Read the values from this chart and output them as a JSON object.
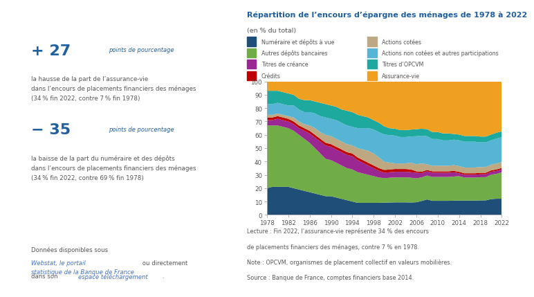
{
  "title": "Répartition de l’encours d’épargne des ménages de 1978 à 2022",
  "subtitle": "(en % du total)",
  "title_color": "#2060a0",
  "text_color": "#555555",
  "link_color": "#4472c4",
  "years": [
    1978,
    1979,
    1980,
    1981,
    1982,
    1983,
    1984,
    1985,
    1986,
    1987,
    1988,
    1989,
    1990,
    1991,
    1992,
    1993,
    1994,
    1995,
    1996,
    1997,
    1998,
    1999,
    2000,
    2001,
    2002,
    2003,
    2004,
    2005,
    2006,
    2007,
    2008,
    2009,
    2010,
    2011,
    2012,
    2013,
    2014,
    2015,
    2016,
    2017,
    2018,
    2019,
    2020,
    2021,
    2022
  ],
  "series": {
    "Numéraire et dépôts à vue": {
      "color": "#1f4e79",
      "values": [
        20,
        21,
        21,
        21,
        21,
        20,
        19,
        18,
        17,
        16,
        15,
        14,
        14,
        13,
        12,
        11,
        10,
        9,
        9,
        9,
        9,
        9,
        9,
        9,
        9,
        9,
        9,
        9,
        9,
        10,
        11,
        10,
        10,
        10,
        10,
        10,
        10,
        10,
        10,
        10,
        10,
        10,
        11,
        11,
        11
      ]
    },
    "Autres dépôts bancaires": {
      "color": "#70ad47",
      "values": [
        47,
        46,
        46,
        45,
        44,
        43,
        41,
        39,
        37,
        34,
        31,
        28,
        27,
        26,
        25,
        24,
        24,
        23,
        22,
        21,
        20,
        19,
        18,
        18,
        18,
        18,
        18,
        18,
        17,
        17,
        17,
        17,
        17,
        17,
        17,
        17,
        17,
        16,
        16,
        16,
        16,
        16,
        17,
        17,
        18
      ]
    },
    "Titres de créance": {
      "color": "#9b2793",
      "values": [
        4,
        4,
        5,
        5,
        5,
        5,
        5,
        6,
        7,
        8,
        9,
        10,
        10,
        10,
        10,
        10,
        10,
        9,
        8,
        7,
        6,
        5,
        4,
        4,
        4,
        4,
        4,
        4,
        4,
        3,
        3,
        3,
        3,
        3,
        3,
        3,
        2,
        2,
        2,
        2,
        2,
        2,
        2,
        2,
        2
      ]
    },
    "Crédits": {
      "color": "#c00000",
      "values": [
        2,
        2,
        2,
        2,
        2,
        2,
        2,
        2,
        2,
        2,
        2,
        2,
        2,
        2,
        2,
        2,
        2,
        2,
        2,
        2,
        2,
        2,
        2,
        2,
        2,
        2,
        2,
        2,
        1,
        1,
        1,
        1,
        1,
        1,
        1,
        1,
        1,
        1,
        1,
        1,
        1,
        1,
        1,
        1,
        1
      ]
    },
    "Actions cotées": {
      "color": "#bda882",
      "values": [
        2,
        2,
        2,
        2,
        2,
        3,
        3,
        3,
        4,
        5,
        5,
        6,
        6,
        6,
        6,
        6,
        6,
        7,
        8,
        9,
        9,
        8,
        6,
        5,
        4,
        4,
        4,
        5,
        5,
        6,
        4,
        4,
        4,
        4,
        4,
        4,
        4,
        4,
        4,
        4,
        4,
        4,
        4,
        4,
        4
      ]
    },
    "Actions non cotées et autres participations": {
      "color": "#56b4d4",
      "values": [
        8,
        8,
        8,
        8,
        8,
        9,
        9,
        9,
        10,
        11,
        12,
        13,
        13,
        14,
        14,
        14,
        14,
        15,
        16,
        17,
        18,
        19,
        20,
        20,
        20,
        19,
        19,
        19,
        20,
        20,
        20,
        19,
        19,
        18,
        18,
        18,
        18,
        18,
        18,
        18,
        17,
        17,
        17,
        17,
        17
      ]
    },
    "Titres d’OPCVM": {
      "color": "#1da99e",
      "values": [
        10,
        10,
        9,
        9,
        9,
        8,
        8,
        9,
        9,
        9,
        10,
        10,
        10,
        10,
        10,
        11,
        11,
        10,
        9,
        8,
        7,
        7,
        6,
        5,
        5,
        5,
        5,
        5,
        5,
        5,
        5,
        5,
        5,
        5,
        5,
        4,
        4,
        4,
        4,
        4,
        4,
        4,
        4,
        4,
        4
      ]
    },
    "Assurance-vie": {
      "color": "#f0a020",
      "values": [
        7,
        7,
        7,
        8,
        9,
        10,
        13,
        14,
        14,
        15,
        16,
        17,
        18,
        19,
        21,
        22,
        23,
        25,
        26,
        27,
        29,
        31,
        33,
        34,
        34,
        35,
        35,
        35,
        34,
        34,
        34,
        36,
        36,
        37,
        37,
        37,
        37,
        38,
        38,
        38,
        38,
        38,
        37,
        35,
        34
      ]
    }
  },
  "stack_order": [
    "Numéraire et dépôts à vue",
    "Autres dépôts bancaires",
    "Titres de créance",
    "Crédits",
    "Actions cotées",
    "Actions non cotées et autres participations",
    "Titres d’OPCVM",
    "Assurance-vie"
  ],
  "legend_col1_keys": [
    "Numéraire et dépôts à vue",
    "Autres dépôts bancaires",
    "Titres de créance",
    "Crédits"
  ],
  "legend_col1_labels": [
    "Numéraire et dépôts à vue",
    "Autres dépôts bancaires",
    "Titres de créance",
    "Crédits"
  ],
  "legend_col2_keys": [
    "Actions cotées",
    "Actions non cotées et autres participations",
    "Titres d’OPCVM",
    "Assurance-vie"
  ],
  "legend_col2_labels": [
    "Actions cotées",
    "Actions non cotées et autres participations",
    "Titres d’OPCVM",
    "Assurance-vie"
  ],
  "xticks": [
    1978,
    1982,
    1986,
    1990,
    1994,
    1998,
    2002,
    2006,
    2010,
    2014,
    2018,
    2022
  ],
  "yticks": [
    0,
    10,
    20,
    30,
    40,
    50,
    60,
    70,
    80,
    90,
    100
  ],
  "note_lines": [
    "Lecture : Fin 2022, l’assurance-vie représente 34 % des encours",
    "de placements financiers des ménages, contre 7 % en 1978.",
    "Note : OPCVM, organismes de placement collectif en valeurs mobilières.",
    "Source : Banque de France, comptes financiers base 2014."
  ]
}
